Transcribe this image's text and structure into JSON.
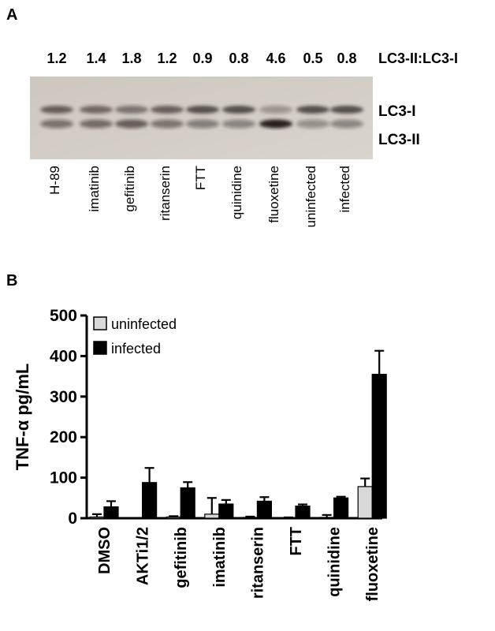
{
  "panel_a": {
    "letter": "A",
    "ratio_label": "LC3-II:LC3-I",
    "ratios": [
      "1.2",
      "1.4",
      "1.8",
      "1.2",
      "0.9",
      "0.8",
      "4.6",
      "0.5",
      "0.8"
    ],
    "bands": [
      "LC3-I",
      "LC3-II"
    ],
    "lanes": [
      "H-89",
      "imatinib",
      "gefitinib",
      "ritanserin",
      "FTT",
      "quinidine",
      "fluoxetine",
      "uninfected",
      "infected"
    ]
  },
  "panel_b": {
    "letter": "B"
  },
  "chart_data": {
    "type": "bar",
    "ylabel": "TNF-α pg/mL",
    "ylim": [
      0,
      500
    ],
    "yticks": [
      0,
      100,
      200,
      300,
      400,
      500
    ],
    "categories": [
      "DMSO",
      "AKTi1/2",
      "gefitinib",
      "imatinib",
      "ritanserin",
      "FTT",
      "quinidine",
      "fluoxetine"
    ],
    "series": [
      {
        "name": "uninfected",
        "color": "#d9d9d9",
        "values": [
          3,
          0,
          3,
          10,
          2,
          1,
          2,
          78
        ],
        "errors": [
          7,
          0,
          2,
          40,
          2,
          1,
          6,
          20
        ]
      },
      {
        "name": "infected",
        "color": "#000000",
        "values": [
          28,
          88,
          75,
          35,
          42,
          30,
          50,
          355
        ],
        "errors": [
          14,
          36,
          14,
          10,
          10,
          4,
          3,
          58
        ]
      }
    ],
    "legend_position": "top-left"
  }
}
